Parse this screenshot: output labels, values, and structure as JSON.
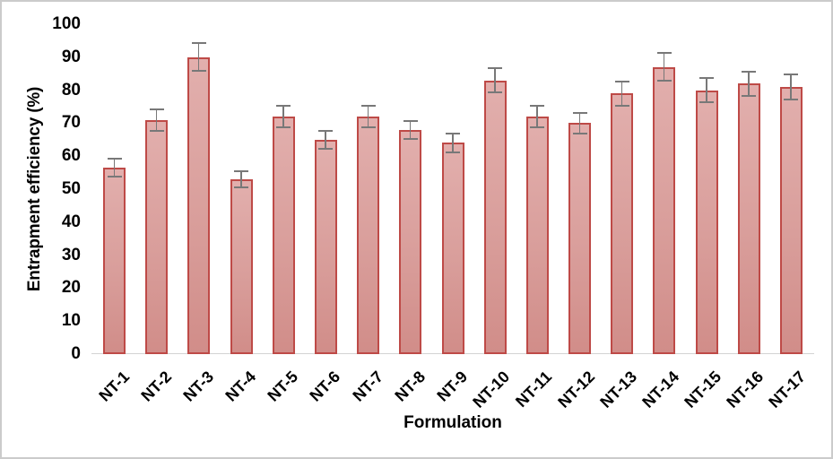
{
  "frame": {
    "background": "#FFFFFF",
    "border_color": "#CBCBCB"
  },
  "chart_data": {
    "type": "bar",
    "title": "",
    "xlabel": "Formulation",
    "ylabel": "Entrapment efficiency (%)",
    "categories": [
      "NT-1",
      "NT-2",
      "NT-3",
      "NT-4",
      "NT-5",
      "NT-6",
      "NT-7",
      "NT-8",
      "NT-9",
      "NT-10",
      "NT-11",
      "NT-12",
      "NT-13",
      "NT-14",
      "NT-15",
      "NT-16",
      "NT-17"
    ],
    "values": [
      56.5,
      71,
      90,
      53,
      72,
      65,
      72,
      68,
      64,
      83,
      72,
      70,
      79,
      87,
      80,
      82,
      81
    ],
    "errors": [
      3,
      3.5,
      4.5,
      2.7,
      3.5,
      3,
      3.5,
      3,
      3,
      4,
      3.5,
      3.5,
      4,
      4.5,
      4,
      4,
      4
    ],
    "ylim": [
      0,
      100
    ],
    "yticks": [
      0,
      10,
      20,
      30,
      40,
      50,
      60,
      70,
      80,
      90,
      100
    ],
    "grid": false,
    "legend": "none",
    "error_bars": true,
    "colors": {
      "bar_fill_top": "#E2AFAD",
      "bar_fill_mid": "#D99E9B",
      "bar_fill_bottom": "#D18D89",
      "bar_border": "#BE4A47",
      "error_bar": "#787878",
      "axis_line": "#D3D3D3",
      "text": "#000000"
    }
  }
}
